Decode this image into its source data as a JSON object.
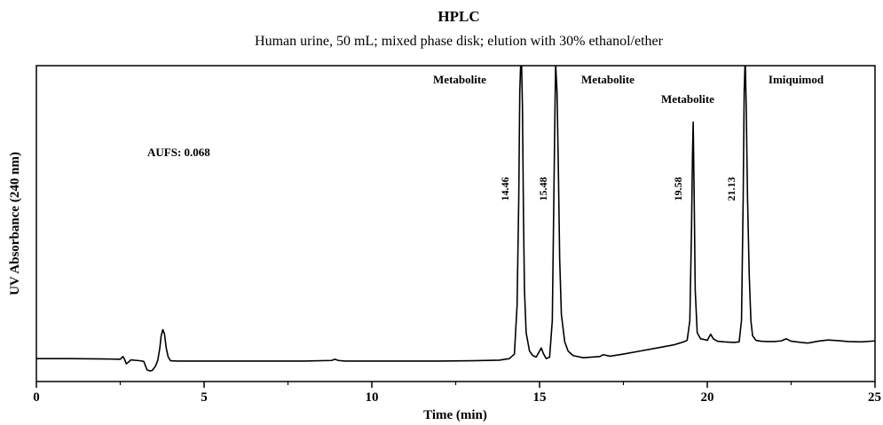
{
  "chart_data": {
    "type": "line",
    "title": "HPLC",
    "subtitle": "Human urine, 50 mL; mixed phase disk; elution with 30% ethanol/ether",
    "xlabel": "Time (min)",
    "ylabel": "UV Absorbance (240 nm)",
    "xlim": [
      0,
      25
    ],
    "ylim": [
      0,
      1
    ],
    "xticks": [
      0,
      5,
      10,
      15,
      20,
      25
    ],
    "grid": false,
    "legend": "none",
    "annotations": {
      "aufs": "AUFS: 0.068"
    },
    "peaks": [
      {
        "label": "Metabolite",
        "rt": "14.46",
        "time": 14.46
      },
      {
        "label": "Metabolite",
        "rt": "15.48",
        "time": 15.48
      },
      {
        "label": "Metabolite",
        "rt": "19.58",
        "time": 19.58
      },
      {
        "label": "Imiquimod",
        "rt": "21.13",
        "time": 21.13
      }
    ],
    "series": [
      {
        "color": "#000000",
        "x": [
          0,
          1,
          2,
          2.5,
          2.58,
          2.62,
          2.68,
          2.75,
          2.82,
          2.9,
          3.0,
          3.1,
          3.2,
          3.3,
          3.38,
          3.45,
          3.55,
          3.62,
          3.68,
          3.72,
          3.77,
          3.82,
          3.87,
          3.93,
          4.0,
          4.2,
          5,
          6,
          7,
          8,
          8.8,
          8.9,
          9.0,
          9.2,
          10,
          11,
          12,
          13,
          13.8,
          14.1,
          14.25,
          14.33,
          14.38,
          14.41,
          14.44,
          14.46,
          14.49,
          14.52,
          14.55,
          14.6,
          14.7,
          14.8,
          14.9,
          15.0,
          15.05,
          15.12,
          15.2,
          15.3,
          15.38,
          15.42,
          15.46,
          15.48,
          15.52,
          15.56,
          15.6,
          15.65,
          15.75,
          15.85,
          16.0,
          16.3,
          16.8,
          16.9,
          17.1,
          17.5,
          18.0,
          18.5,
          19.0,
          19.3,
          19.4,
          19.48,
          19.53,
          19.56,
          19.58,
          19.61,
          19.64,
          19.7,
          19.8,
          19.9,
          20.0,
          20.1,
          20.18,
          20.3,
          20.5,
          20.8,
          20.95,
          21.02,
          21.07,
          21.1,
          21.13,
          21.16,
          21.2,
          21.25,
          21.3,
          21.35,
          21.45,
          21.6,
          21.8,
          22.0,
          22.2,
          22.35,
          22.5,
          22.8,
          23.0,
          23.3,
          23.6,
          23.9,
          24.2,
          24.6,
          25
        ],
        "y": [
          0.075,
          0.075,
          0.074,
          0.073,
          0.082,
          0.075,
          0.058,
          0.064,
          0.071,
          0.07,
          0.069,
          0.068,
          0.066,
          0.038,
          0.035,
          0.036,
          0.05,
          0.07,
          0.11,
          0.15,
          0.17,
          0.155,
          0.11,
          0.08,
          0.068,
          0.067,
          0.067,
          0.067,
          0.067,
          0.067,
          0.069,
          0.073,
          0.069,
          0.067,
          0.067,
          0.067,
          0.067,
          0.068,
          0.07,
          0.075,
          0.09,
          0.25,
          0.6,
          0.95,
          1.05,
          1.06,
          0.9,
          0.55,
          0.3,
          0.16,
          0.1,
          0.085,
          0.08,
          0.1,
          0.11,
          0.09,
          0.075,
          0.08,
          0.2,
          0.55,
          0.9,
          1.04,
          0.95,
          0.7,
          0.4,
          0.22,
          0.13,
          0.1,
          0.085,
          0.078,
          0.082,
          0.088,
          0.083,
          0.09,
          0.1,
          0.11,
          0.12,
          0.13,
          0.135,
          0.2,
          0.5,
          0.75,
          0.85,
          0.6,
          0.3,
          0.16,
          0.14,
          0.138,
          0.135,
          0.155,
          0.14,
          0.132,
          0.13,
          0.128,
          0.13,
          0.2,
          0.6,
          0.95,
          1.06,
          0.9,
          0.6,
          0.35,
          0.2,
          0.15,
          0.135,
          0.132,
          0.131,
          0.131,
          0.133,
          0.14,
          0.132,
          0.128,
          0.126,
          0.132,
          0.136,
          0.134,
          0.131,
          0.13,
          0.133
        ]
      }
    ]
  }
}
